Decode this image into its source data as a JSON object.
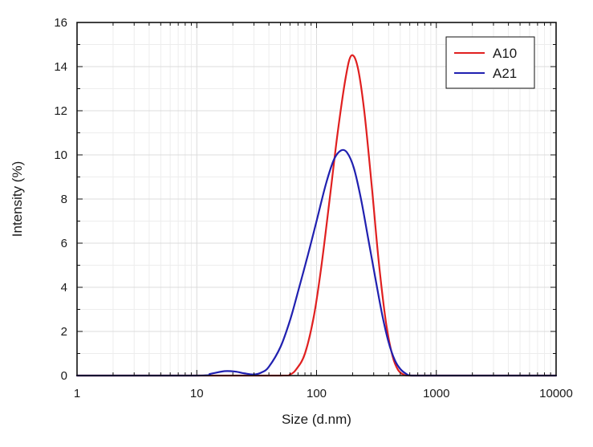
{
  "chart_data": {
    "type": "line",
    "xlabel": "Size (d.nm)",
    "ylabel": "Intensity (%)",
    "xscale": "log",
    "xlim": [
      1,
      10000
    ],
    "ylim": [
      0,
      16
    ],
    "xticks": [
      "1",
      "10",
      "100",
      "1000",
      "10000"
    ],
    "yticks": [
      "0",
      "2",
      "4",
      "6",
      "8",
      "10",
      "12",
      "14",
      "16"
    ],
    "grid": true,
    "legend_position": "top-right",
    "series": [
      {
        "name": "A10",
        "color": "#e02020",
        "x": [
          1,
          10,
          50,
          60,
          68,
          80,
          95,
          110,
          130,
          150,
          175,
          195,
          220,
          250,
          290,
          330,
          380,
          430,
          480,
          540,
          600,
          1000,
          10000
        ],
        "y": [
          0,
          0,
          0,
          0.05,
          0.3,
          1.0,
          2.7,
          5.0,
          8.2,
          11.0,
          13.5,
          14.5,
          14.0,
          12.0,
          8.5,
          5.2,
          2.4,
          0.9,
          0.25,
          0.03,
          0,
          0,
          0
        ]
      },
      {
        "name": "A21",
        "color": "#2020b0",
        "x": [
          1,
          10,
          13,
          17,
          21,
          25,
          30,
          35,
          40,
          50,
          60,
          70,
          85,
          100,
          120,
          140,
          160,
          180,
          205,
          235,
          270,
          310,
          355,
          400,
          450,
          500,
          560,
          620,
          1000,
          10000
        ],
        "y": [
          0,
          0,
          0.08,
          0.2,
          0.18,
          0.1,
          0.05,
          0.15,
          0.4,
          1.3,
          2.5,
          3.8,
          5.5,
          7.0,
          8.7,
          9.8,
          10.2,
          10.1,
          9.4,
          8.0,
          6.2,
          4.4,
          2.7,
          1.5,
          0.7,
          0.3,
          0.08,
          0,
          0,
          0
        ]
      }
    ]
  }
}
